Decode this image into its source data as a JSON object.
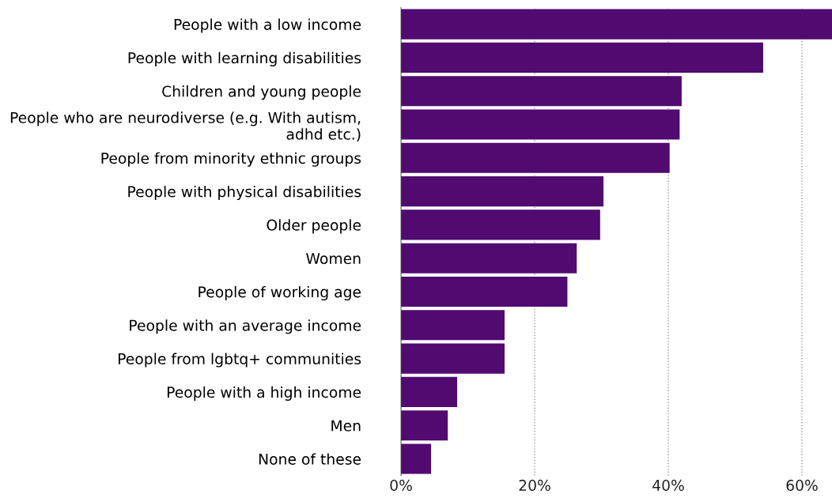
{
  "chart_data": {
    "type": "bar",
    "orientation": "horizontal",
    "categories": [
      "People with a low income",
      "People with learning disabilities",
      "Children and young people",
      "People who are neurodiverse (e.g. With autism,\nadhd etc.)",
      "People from minority ethnic groups",
      "People with physical disabilities",
      "Older people",
      "Women",
      "People of working age",
      "People with an average income",
      "People from lgbtq+ communities",
      "People with a high income",
      "Men",
      "None of these"
    ],
    "values": [
      64.5,
      54.2,
      42.0,
      41.7,
      40.2,
      30.3,
      29.8,
      26.3,
      24.9,
      15.5,
      15.5,
      8.4,
      7.0,
      4.5
    ],
    "color": "#500a70",
    "xlim": [
      0,
      64.5
    ],
    "xticks": [
      {
        "value": 0,
        "label": "0%"
      },
      {
        "value": 20,
        "label": "20%"
      },
      {
        "value": 40,
        "label": "40%"
      },
      {
        "value": 60,
        "label": "60%"
      }
    ],
    "grid": "x"
  }
}
